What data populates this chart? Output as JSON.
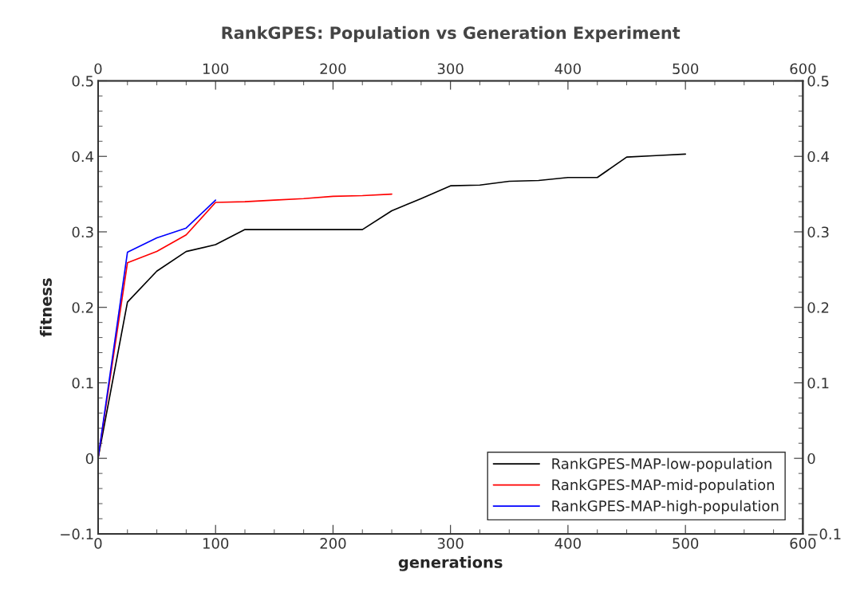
{
  "chart_data": {
    "type": "line",
    "title": "RankGPES: Population vs Generation Experiment",
    "xlabel": "generations",
    "ylabel": "fitness",
    "xlim": [
      0,
      600
    ],
    "xticks": [
      0,
      100,
      200,
      300,
      400,
      500,
      600
    ],
    "ylim": [
      -0.1,
      0.5
    ],
    "yticks": [
      {
        "value": -0.1,
        "label": "−0.1"
      },
      0,
      0.1,
      0.2,
      0.3,
      0.4,
      0.5
    ],
    "x2lim": [
      0,
      600
    ],
    "x2ticks": [
      0,
      100,
      200,
      300,
      400,
      500,
      600
    ],
    "y2lim": [
      -0.1,
      0.5
    ],
    "y2ticks": [
      {
        "value": -0.1,
        "label": "−0.1"
      },
      0,
      0.1,
      0.2,
      0.3,
      0.4,
      0.5
    ],
    "grid": false,
    "legend": "bottom right",
    "marker": "none",
    "line_style": "solid",
    "series": [
      {
        "name": "RankGPES-MAP-low-population",
        "color": "#000000",
        "x": [
          0,
          25,
          50,
          75,
          100,
          125,
          150,
          175,
          200,
          225,
          250,
          275,
          300,
          325,
          350,
          375,
          400,
          425,
          450,
          475,
          500
        ],
        "values": [
          0,
          0.207,
          0.248,
          0.274,
          0.283,
          0.303,
          0.303,
          0.303,
          0.303,
          0.303,
          0.328,
          0.344,
          0.361,
          0.362,
          0.367,
          0.368,
          0.372,
          0.372,
          0.399,
          0.401,
          0.403
        ]
      },
      {
        "name": "RankGPES-MAP-mid-population",
        "color": "#ff0000",
        "x": [
          0,
          25,
          50,
          75,
          100,
          125,
          150,
          175,
          200,
          225,
          250
        ],
        "values": [
          0,
          0.259,
          0.274,
          0.296,
          0.339,
          0.34,
          0.342,
          0.344,
          0.347,
          0.348,
          0.35
        ]
      },
      {
        "name": "RankGPES-MAP-high-population",
        "color": "#0000ff",
        "x": [
          0,
          25,
          50,
          75,
          100
        ],
        "values": [
          0,
          0.273,
          0.292,
          0.305,
          0.342
        ]
      }
    ]
  }
}
